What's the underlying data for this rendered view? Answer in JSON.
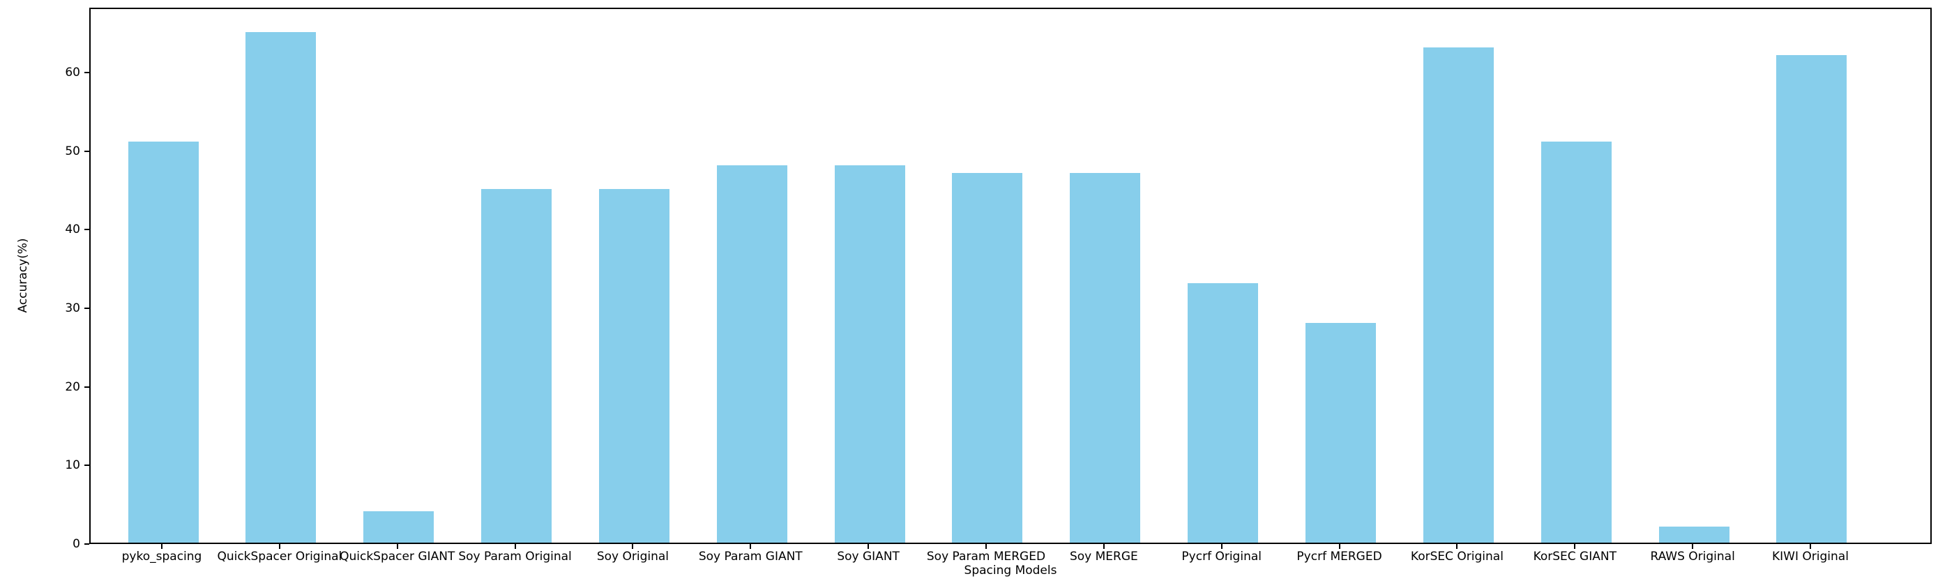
{
  "chart_data": {
    "type": "bar",
    "title": "",
    "xlabel": "Spacing Models",
    "ylabel": "Accuracy(%)",
    "categories": [
      "pyko_spacing",
      "QuickSpacer Original",
      "QuickSpacer GIANT",
      "Soy Param Original",
      "Soy Original",
      "Soy Param GIANT",
      "Soy GIANT",
      "Soy Param MERGED",
      "Soy MERGE",
      "Pycrf Original",
      "Pycrf MERGED",
      "KorSEC Original",
      "KorSEC GIANT",
      "RAWS Original",
      "KIWI Original"
    ],
    "values": [
      51,
      65,
      4,
      45,
      45,
      48,
      48,
      47,
      47,
      33,
      28,
      63,
      51,
      2,
      62
    ],
    "yticks": [
      0,
      10,
      20,
      30,
      40,
      50,
      60
    ],
    "ylim": [
      0,
      68.25
    ],
    "grid": false,
    "legend": false,
    "bar_color": "#87CEEB",
    "axis_color": "#000000",
    "background_color": "#FFFFFF"
  }
}
